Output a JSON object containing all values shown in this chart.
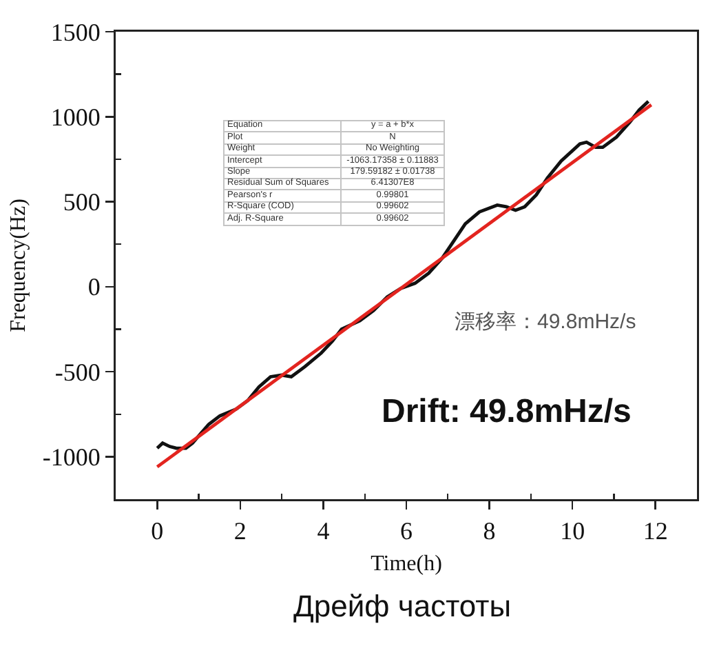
{
  "chart_data": {
    "type": "line",
    "xlabel": "Time(h)",
    "ylabel": "Frequency(Hz)",
    "xlim": [
      -1,
      13
    ],
    "xticks": [
      0,
      {
        "value": 1,
        "label": null
      },
      2,
      {
        "value": 3,
        "label": null
      },
      4,
      {
        "value": 5,
        "label": null
      },
      6,
      {
        "value": 7,
        "label": null
      },
      8,
      {
        "value": 9,
        "label": null
      },
      10,
      {
        "value": 11,
        "label": null
      },
      12
    ],
    "ylim": [
      -1250,
      1500
    ],
    "yticks": [
      -1000,
      {
        "value": -750,
        "label": null
      },
      -500,
      {
        "value": -250,
        "label": null
      },
      0,
      {
        "value": 250,
        "label": null
      },
      500,
      {
        "value": 750,
        "label": null
      },
      1000,
      {
        "value": 1250,
        "label": null
      },
      1500
    ],
    "series": [
      {
        "color": "#111111",
        "x": [
          0,
          0.13,
          0.3,
          0.46,
          0.69,
          0.85,
          1.24,
          1.51,
          1.9,
          2.18,
          2.45,
          2.73,
          3.0,
          3.23,
          3.56,
          3.95,
          4.22,
          4.44,
          4.88,
          5.21,
          5.54,
          5.87,
          6.21,
          6.54,
          6.87,
          7.2,
          7.42,
          7.76,
          8.19,
          8.41,
          8.63,
          8.85,
          9.13,
          9.4,
          9.73,
          10.18,
          10.34,
          10.56,
          10.73,
          11.06,
          11.39,
          11.61,
          11.83
        ],
        "values": [
          -950,
          -920,
          -940,
          -950,
          -950,
          -920,
          -810,
          -760,
          -720,
          -670,
          -590,
          -530,
          -520,
          -530,
          -470,
          -390,
          -320,
          -250,
          -200,
          -140,
          -60,
          -10,
          20,
          80,
          170,
          290,
          370,
          440,
          480,
          470,
          450,
          470,
          540,
          640,
          740,
          840,
          850,
          820,
          820,
          880,
          970,
          1040,
          1090
        ]
      },
      {
        "color": "#e3241f",
        "x": [
          0,
          11.9
        ],
        "values": [
          -1060,
          1070
        ]
      }
    ],
    "annotations": [
      "Equation",
      "y = a + b*x",
      "Plot",
      "N",
      "Weight",
      "No Weighting",
      "Intercept",
      "-1063.17358 ± 0.11883",
      "Slope",
      "179.59182 ± 0.01738",
      "Residual Sum of Squares",
      "6.41307E8",
      "Pearson's r",
      "0.99801",
      "R-Square (COD)",
      "0.99602",
      "Adj. R-Square",
      "0.99602",
      "漂移率：49.8mHz/s",
      "Drift: 49.8mHz/s",
      "Дрейф частоты"
    ]
  }
}
